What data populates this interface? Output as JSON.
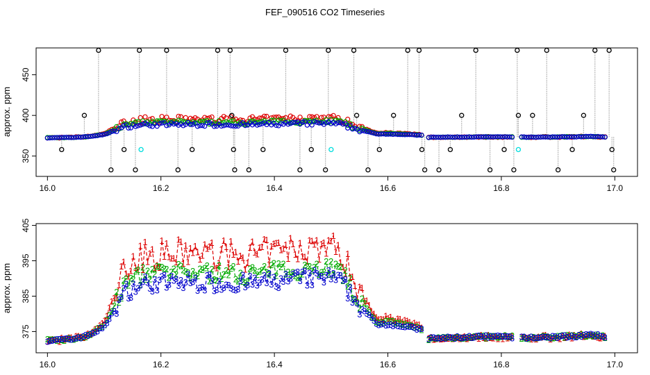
{
  "figure_title": "FEF_090516  CO2 Timeseries",
  "chart_data": [
    {
      "type": "scatter",
      "panel": "top",
      "ylabel": "approx. ppm",
      "xlim": [
        15.98,
        17.04
      ],
      "ylim": [
        325,
        483
      ],
      "xticks": [
        "16.0",
        "16.2",
        "16.4",
        "16.6",
        "16.8",
        "17.0"
      ],
      "yticks": [
        "350",
        "400",
        "450"
      ],
      "colors": {
        "s1": "#dd0000",
        "s2": "#00aa00",
        "s3": "#0000cc",
        "outlier": "#000000",
        "cyan": "#00dddd",
        "line": "#aaaaaa"
      },
      "outlier_points": [
        [
          16.025,
          358
        ],
        [
          16.065,
          400
        ],
        [
          16.09,
          480
        ],
        [
          16.112,
          333
        ],
        [
          16.135,
          358
        ],
        [
          16.155,
          333
        ],
        [
          16.162,
          480
        ],
        [
          16.21,
          480
        ],
        [
          16.23,
          333
        ],
        [
          16.255,
          358
        ],
        [
          16.3,
          480
        ],
        [
          16.322,
          480
        ],
        [
          16.325,
          400
        ],
        [
          16.328,
          358
        ],
        [
          16.33,
          333
        ],
        [
          16.355,
          333
        ],
        [
          16.38,
          358
        ],
        [
          16.42,
          480
        ],
        [
          16.445,
          333
        ],
        [
          16.465,
          358
        ],
        [
          16.49,
          333
        ],
        [
          16.495,
          480
        ],
        [
          16.54,
          480
        ],
        [
          16.545,
          400
        ],
        [
          16.565,
          333
        ],
        [
          16.585,
          358
        ],
        [
          16.61,
          400
        ],
        [
          16.635,
          480
        ],
        [
          16.655,
          480
        ],
        [
          16.66,
          358
        ],
        [
          16.665,
          333
        ],
        [
          16.69,
          333
        ],
        [
          16.71,
          358
        ],
        [
          16.73,
          400
        ],
        [
          16.755,
          480
        ],
        [
          16.78,
          333
        ],
        [
          16.805,
          358
        ],
        [
          16.822,
          333
        ],
        [
          16.828,
          480
        ],
        [
          16.83,
          400
        ],
        [
          16.855,
          400
        ],
        [
          16.88,
          480
        ],
        [
          16.9,
          333
        ],
        [
          16.925,
          358
        ],
        [
          16.945,
          400
        ],
        [
          16.965,
          480
        ],
        [
          16.99,
          480
        ],
        [
          16.995,
          358
        ],
        [
          16.998,
          333
        ]
      ],
      "cyan_points": [
        [
          16.165,
          358
        ],
        [
          16.5,
          358
        ],
        [
          16.83,
          358
        ]
      ]
    },
    {
      "type": "line",
      "panel": "bottom",
      "ylabel": "approx. ppm",
      "xlim": [
        15.98,
        17.04
      ],
      "ylim": [
        369,
        405.5
      ],
      "xticks": [
        "16.0",
        "16.2",
        "16.4",
        "16.6",
        "16.8",
        "17.0"
      ],
      "yticks": [
        "375",
        "385",
        "395",
        "405"
      ],
      "series": [
        {
          "name": "1",
          "label": "1",
          "color": "#dd0000"
        },
        {
          "name": "2",
          "label": "2",
          "color": "#00aa00"
        },
        {
          "name": "3",
          "label": "3",
          "color": "#0000cc"
        }
      ],
      "profile_x": [
        16.0,
        16.04,
        16.07,
        16.1,
        16.125,
        16.14,
        16.17,
        16.25,
        16.35,
        16.45,
        16.5,
        16.52,
        16.55,
        16.58,
        16.6,
        16.62,
        16.65,
        16.665,
        16.67,
        16.75,
        16.82,
        16.835,
        16.9,
        16.96,
        16.985
      ],
      "profile_y": [
        372.5,
        372.8,
        373.8,
        376.5,
        384,
        388,
        390,
        390.5,
        390,
        391.5,
        392,
        390,
        383,
        377.5,
        377.5,
        377,
        376,
        375.5,
        373,
        373.5,
        373.5,
        373.2,
        373.5,
        374,
        373.5
      ],
      "gap_x": [
        [
          16.663,
          16.672
        ],
        [
          16.82,
          16.834
        ]
      ]
    }
  ]
}
